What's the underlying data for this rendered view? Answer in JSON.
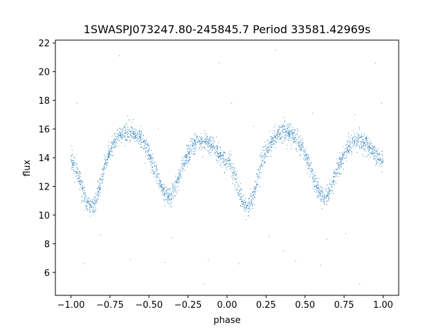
{
  "chart_data": {
    "type": "scatter",
    "title": "1SWASPJ073247.80-245845.7 Period 33581.42969s",
    "xlabel": "phase",
    "ylabel": "flux",
    "xlim": [
      -1.1,
      1.1
    ],
    "ylim": [
      4.4,
      22.2
    ],
    "xticks": [
      -1.0,
      -0.75,
      -0.5,
      -0.25,
      0.0,
      0.25,
      0.5,
      0.75,
      1.0
    ],
    "xtick_labels": [
      "−1.00",
      "−0.75",
      "−0.50",
      "−0.25",
      "0.00",
      "0.25",
      "0.50",
      "0.75",
      "1.00"
    ],
    "yticks": [
      6,
      8,
      10,
      12,
      14,
      16,
      18,
      20,
      22
    ],
    "ytick_labels": [
      "6",
      "8",
      "10",
      "12",
      "14",
      "16",
      "18",
      "20",
      "22"
    ],
    "grid": false,
    "marker_color": "#1f77b4",
    "series": [
      {
        "name": "",
        "points": [
          [
            -1.0,
            13.9
          ],
          [
            -0.98,
            13.6
          ],
          [
            -0.96,
            13.0
          ],
          [
            -0.94,
            12.3
          ],
          [
            -0.92,
            11.5
          ],
          [
            -0.9,
            10.9
          ],
          [
            -0.88,
            10.5
          ],
          [
            -0.86,
            10.6
          ],
          [
            -0.84,
            11.0
          ],
          [
            -0.82,
            11.8
          ],
          [
            -0.8,
            12.7
          ],
          [
            -0.78,
            13.5
          ],
          [
            -0.76,
            14.2
          ],
          [
            -0.74,
            14.7
          ],
          [
            -0.72,
            15.1
          ],
          [
            -0.7,
            15.4
          ],
          [
            -0.68,
            15.6
          ],
          [
            -0.66,
            15.7
          ],
          [
            -0.64,
            15.8
          ],
          [
            -0.62,
            15.8
          ],
          [
            -0.6,
            15.7
          ],
          [
            -0.58,
            15.6
          ],
          [
            -0.56,
            15.4
          ],
          [
            -0.54,
            15.1
          ],
          [
            -0.52,
            14.7
          ],
          [
            -0.5,
            14.2
          ],
          [
            -0.48,
            13.6
          ],
          [
            -0.46,
            13.0
          ],
          [
            -0.44,
            12.4
          ],
          [
            -0.42,
            11.9
          ],
          [
            -0.4,
            11.5
          ],
          [
            -0.38,
            11.2
          ],
          [
            -0.36,
            11.3
          ],
          [
            -0.34,
            11.7
          ],
          [
            -0.32,
            12.3
          ],
          [
            -0.3,
            12.9
          ],
          [
            -0.28,
            13.5
          ],
          [
            -0.26,
            14.0
          ],
          [
            -0.24,
            14.4
          ],
          [
            -0.22,
            14.8
          ],
          [
            -0.2,
            15.0
          ],
          [
            -0.18,
            15.1
          ],
          [
            -0.16,
            15.1
          ],
          [
            -0.14,
            15.1
          ],
          [
            -0.12,
            15.0
          ],
          [
            -0.1,
            14.9
          ],
          [
            -0.08,
            14.7
          ],
          [
            -0.06,
            14.4
          ],
          [
            -0.04,
            14.1
          ],
          [
            -0.02,
            13.8
          ],
          [
            0.0,
            13.9
          ],
          [
            0.02,
            13.6
          ],
          [
            0.04,
            13.0
          ],
          [
            0.06,
            12.3
          ],
          [
            0.08,
            11.5
          ],
          [
            0.1,
            10.9
          ],
          [
            0.12,
            10.5
          ],
          [
            0.14,
            10.6
          ],
          [
            0.16,
            11.0
          ],
          [
            0.18,
            11.8
          ],
          [
            0.2,
            12.7
          ],
          [
            0.22,
            13.5
          ],
          [
            0.24,
            14.2
          ],
          [
            0.26,
            14.7
          ],
          [
            0.28,
            15.1
          ],
          [
            0.3,
            15.4
          ],
          [
            0.32,
            15.6
          ],
          [
            0.34,
            15.7
          ],
          [
            0.36,
            15.8
          ],
          [
            0.38,
            15.8
          ],
          [
            0.4,
            15.7
          ],
          [
            0.42,
            15.6
          ],
          [
            0.44,
            15.4
          ],
          [
            0.46,
            15.1
          ],
          [
            0.48,
            14.7
          ],
          [
            0.5,
            14.2
          ],
          [
            0.52,
            13.6
          ],
          [
            0.54,
            13.0
          ],
          [
            0.56,
            12.4
          ],
          [
            0.58,
            11.9
          ],
          [
            0.6,
            11.5
          ],
          [
            0.62,
            11.2
          ],
          [
            0.64,
            11.3
          ],
          [
            0.66,
            11.7
          ],
          [
            0.68,
            12.3
          ],
          [
            0.7,
            12.9
          ],
          [
            0.72,
            13.5
          ],
          [
            0.74,
            14.0
          ],
          [
            0.76,
            14.4
          ],
          [
            0.78,
            14.8
          ],
          [
            0.8,
            15.0
          ],
          [
            0.82,
            15.1
          ],
          [
            0.84,
            15.1
          ],
          [
            0.86,
            15.1
          ],
          [
            0.88,
            15.0
          ],
          [
            0.9,
            14.9
          ],
          [
            0.92,
            14.7
          ],
          [
            0.94,
            14.4
          ],
          [
            0.96,
            14.1
          ],
          [
            0.98,
            13.8
          ],
          [
            1.0,
            13.7
          ]
        ],
        "outliers": [
          [
            -0.69,
            21.1
          ],
          [
            -0.05,
            20.6
          ],
          [
            0.31,
            21.5
          ],
          [
            0.95,
            20.6
          ],
          [
            -0.96,
            17.8
          ],
          [
            0.03,
            17.8
          ],
          [
            0.37,
            16.5
          ],
          [
            0.99,
            17.8
          ],
          [
            -0.92,
            6.6
          ],
          [
            -0.62,
            6.9
          ],
          [
            -0.4,
            6.7
          ],
          [
            -0.35,
            8.4
          ],
          [
            -0.12,
            6.9
          ],
          [
            0.08,
            6.6
          ],
          [
            0.36,
            7.5
          ],
          [
            0.44,
            6.8
          ],
          [
            0.6,
            6.5
          ],
          [
            0.64,
            8.3
          ],
          [
            0.85,
            5.2
          ],
          [
            -0.15,
            5.2
          ],
          [
            -0.81,
            8.6
          ],
          [
            0.27,
            8.5
          ],
          [
            0.76,
            8.7
          ],
          [
            0.55,
            17.1
          ],
          [
            -0.44,
            16.0
          ],
          [
            0.17,
            16.2
          ],
          [
            0.82,
            17.0
          ]
        ]
      }
    ]
  }
}
